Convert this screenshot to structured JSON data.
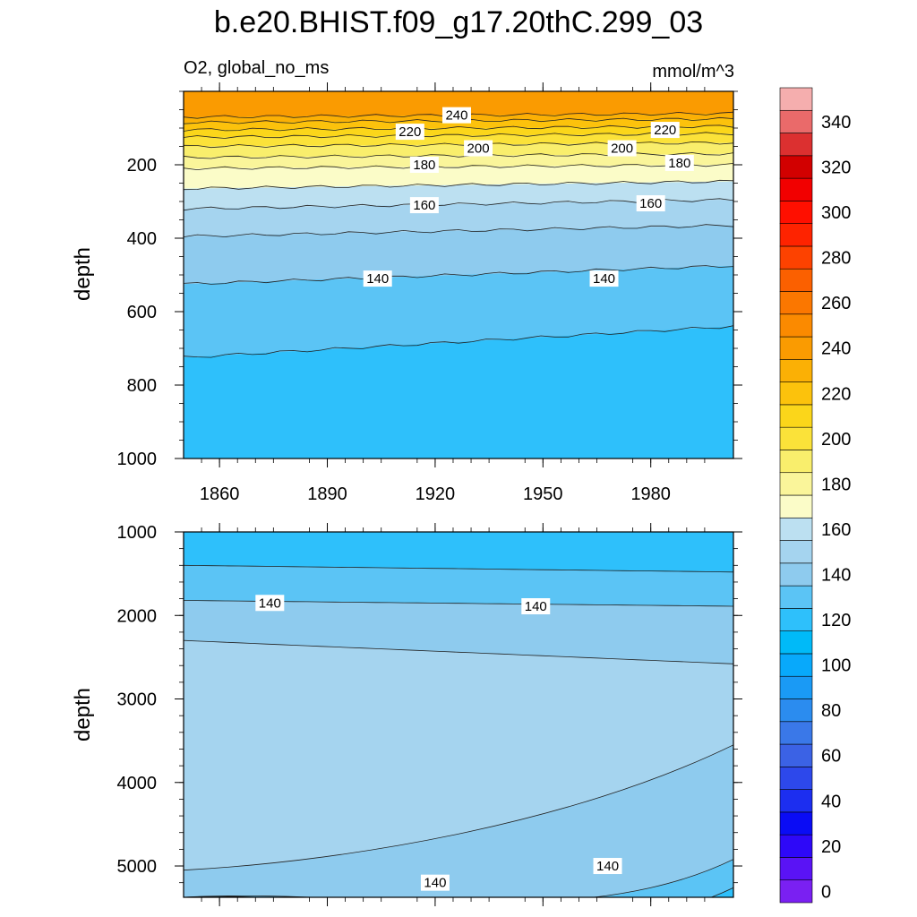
{
  "chart_data": {
    "title": "b.e20.BHIST.f09_g17.20thC.299_03",
    "subtitle_left": "O2, global_no_ms",
    "subtitle_right": "mmol/m^3",
    "type": "contour",
    "x": {
      "range": [
        1850,
        2003
      ],
      "tick_values": [
        1860,
        1890,
        1920,
        1950,
        1980
      ],
      "tick_labels": [
        "1860",
        "1890",
        "1920",
        "1950",
        "1980"
      ]
    },
    "colorbar": {
      "levels": [
        0,
        10,
        20,
        30,
        40,
        50,
        60,
        70,
        80,
        90,
        100,
        110,
        120,
        130,
        140,
        150,
        160,
        170,
        180,
        190,
        200,
        210,
        220,
        230,
        240,
        250,
        260,
        270,
        280,
        290,
        300,
        310,
        320,
        330,
        340,
        350
      ],
      "label_values": [
        0,
        20,
        40,
        60,
        80,
        100,
        120,
        140,
        160,
        180,
        200,
        220,
        240,
        260,
        280,
        300,
        320,
        340
      ],
      "label_texts": [
        "0",
        "20",
        "40",
        "60",
        "80",
        "100",
        "120",
        "140",
        "160",
        "180",
        "200",
        "220",
        "240",
        "260",
        "280",
        "300",
        "320",
        "340"
      ],
      "colors": [
        "#7a20f2",
        "#5a13f5",
        "#2e08f8",
        "#0a0cf5",
        "#1c2ef0",
        "#2d48eb",
        "#3b62e5",
        "#3a78e8",
        "#2b8cef",
        "#1a9af5",
        "#08a9fb",
        "#00baf8",
        "#2ec0fb",
        "#5bc4f5",
        "#8ecbee",
        "#a5d4ef",
        "#bce0f1",
        "#fbfcc8",
        "#faf59a",
        "#f9ee6c",
        "#fbe239",
        "#fbd61a",
        "#fcc20c",
        "#fbb005",
        "#fa9b01",
        "#fb8a00",
        "#fb7700",
        "#fb6000",
        "#fd4200",
        "#fe2300",
        "#ff0f00",
        "#f20000",
        "#d20000",
        "#dc3030",
        "#ea6a6a",
        "#f5aeae"
      ]
    },
    "panels": [
      {
        "name": "upper",
        "ylabel": "depth",
        "y_range": [
          0,
          1000
        ],
        "y_reversed": true,
        "y_tick_values": [
          200,
          400,
          600,
          800,
          1000
        ],
        "y_tick_labels": [
          "200",
          "400",
          "600",
          "800",
          "1000"
        ],
        "x_tick_labels_shown": true,
        "contours": [
          {
            "value": 240,
            "depth_at_start": 70,
            "depth_at_end": 60
          },
          {
            "value": 230,
            "depth_at_start": 85,
            "depth_at_end": 75
          },
          {
            "value": 220,
            "depth_at_start": 105,
            "depth_at_end": 95
          },
          {
            "value": 210,
            "depth_at_start": 125,
            "depth_at_end": 115
          },
          {
            "value": 200,
            "depth_at_start": 150,
            "depth_at_end": 140
          },
          {
            "value": 190,
            "depth_at_start": 180,
            "depth_at_end": 170
          },
          {
            "value": 180,
            "depth_at_start": 210,
            "depth_at_end": 200
          },
          {
            "value": 170,
            "depth_at_start": 265,
            "depth_at_end": 245
          },
          {
            "value": 160,
            "depth_at_start": 320,
            "depth_at_end": 295
          },
          {
            "value": 150,
            "depth_at_start": 395,
            "depth_at_end": 365
          },
          {
            "value": 140,
            "depth_at_start": 525,
            "depth_at_end": 475
          },
          {
            "value": 130,
            "depth_at_start": 725,
            "depth_at_end": 640
          }
        ],
        "contour_labels": [
          {
            "text": "240",
            "year": 1926,
            "depth": 65
          },
          {
            "text": "220",
            "year": 1913,
            "depth": 110
          },
          {
            "text": "220",
            "year": 1984,
            "depth": 105
          },
          {
            "text": "200",
            "year": 1932,
            "depth": 155
          },
          {
            "text": "200",
            "year": 1972,
            "depth": 155
          },
          {
            "text": "180",
            "year": 1917,
            "depth": 200
          },
          {
            "text": "180",
            "year": 1988,
            "depth": 195
          },
          {
            "text": "160",
            "year": 1917,
            "depth": 310
          },
          {
            "text": "160",
            "year": 1980,
            "depth": 305
          },
          {
            "text": "140",
            "year": 1904,
            "depth": 510
          },
          {
            "text": "140",
            "year": 1967,
            "depth": 510
          }
        ]
      },
      {
        "name": "lower",
        "ylabel": "depth",
        "y_range": [
          1000,
          5375
        ],
        "y_reversed": true,
        "y_tick_values": [
          1000,
          2000,
          3000,
          4000,
          5000
        ],
        "y_tick_labels": [
          "1000",
          "2000",
          "3000",
          "4000",
          "5000"
        ],
        "x_tick_labels_shown": false,
        "contours": [
          {
            "value": 130,
            "depth_at_start": 1400,
            "depth_at_end": 1480
          },
          {
            "value": 140,
            "depth_at_start": 1820,
            "depth_at_end": 1890
          },
          {
            "value": 150,
            "depth_at_start": 2300,
            "depth_at_end": 2580
          },
          {
            "value": 150,
            "depth_at_start": 5050,
            "depth_at_end": 3550
          },
          {
            "value": 140,
            "depth_at_start": 5375,
            "depth_at_end": 4920
          },
          {
            "value": 130,
            "depth_at_start": 5375,
            "depth_at_end": 5260
          }
        ],
        "contour_labels": [
          {
            "text": "140",
            "year": 1874,
            "depth": 1850
          },
          {
            "text": "140",
            "year": 1948,
            "depth": 1890
          },
          {
            "text": "140",
            "year": 1920,
            "depth": 5200
          },
          {
            "text": "140",
            "year": 1968,
            "depth": 5000
          }
        ]
      }
    ]
  }
}
